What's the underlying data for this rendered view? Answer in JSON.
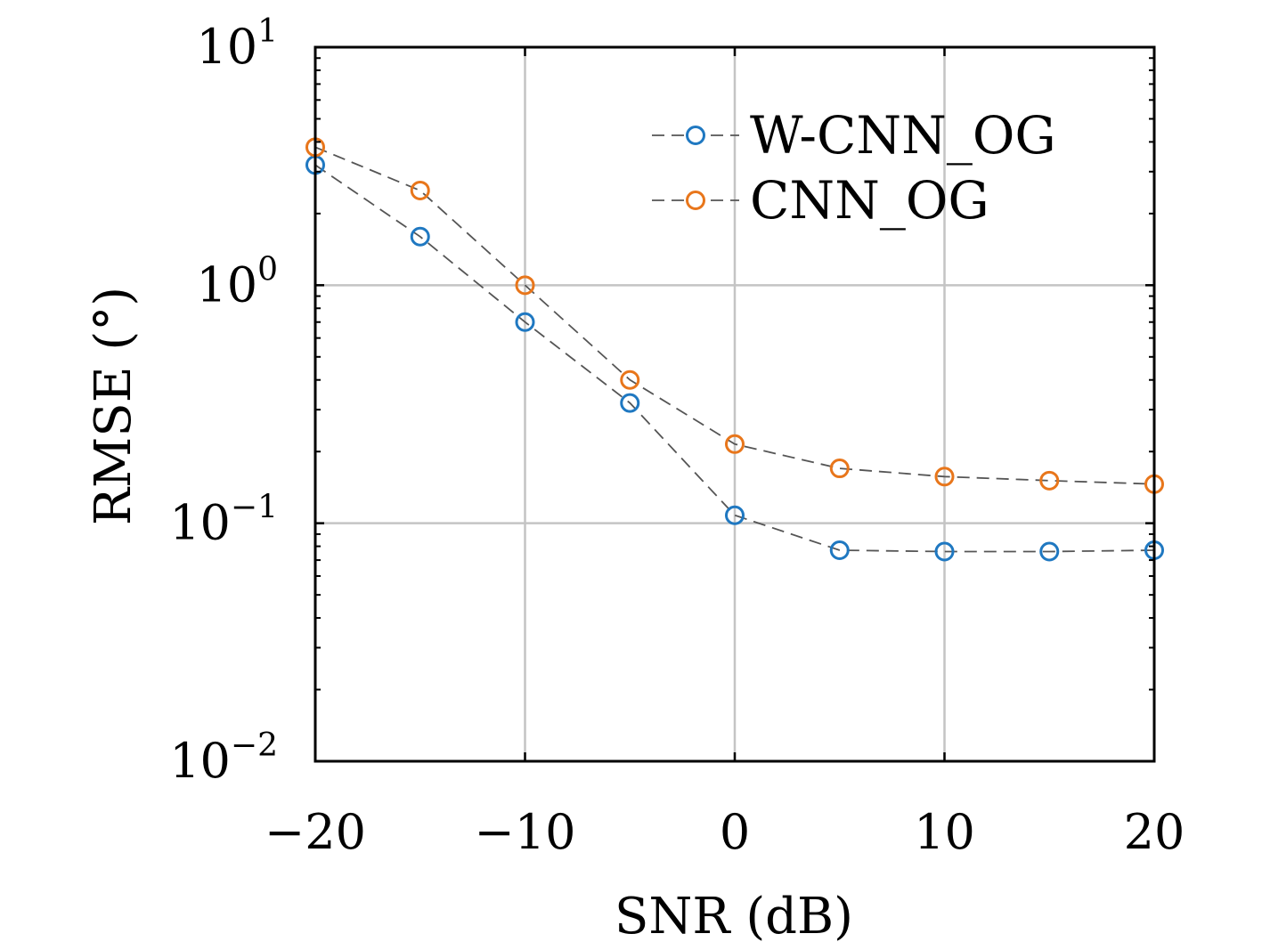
{
  "chart_data": {
    "type": "line",
    "title": "",
    "xlabel": "SNR (dB)",
    "ylabel": "RMSE (°)",
    "xlim": [
      -20,
      20
    ],
    "ylim": [
      0.01,
      10
    ],
    "yscale": "log",
    "grid": true,
    "legend_position": "top-right",
    "x": [
      -20,
      -15,
      -10,
      -5,
      0,
      5,
      10,
      15,
      20
    ],
    "x_ticks": [
      -20,
      -10,
      0,
      10,
      20
    ],
    "x_tick_labels": [
      "−20",
      "−10",
      "0",
      "10",
      "20"
    ],
    "y_ticks": [
      0.01,
      0.1,
      1,
      10
    ],
    "y_tick_labels": [
      {
        "base": "10",
        "exp": "−2"
      },
      {
        "base": "10",
        "exp": "−1"
      },
      {
        "base": "10",
        "exp": "0"
      },
      {
        "base": "10",
        "exp": "1"
      }
    ],
    "series": [
      {
        "name": "W-CNN_OG",
        "color": "#1f78c1",
        "values": [
          3.2,
          1.6,
          0.7,
          0.32,
          0.108,
          0.077,
          0.076,
          0.076,
          0.077
        ]
      },
      {
        "name": "CNN_OG",
        "color": "#e8761b",
        "values": [
          3.8,
          2.5,
          1.0,
          0.4,
          0.215,
          0.17,
          0.157,
          0.151,
          0.146
        ]
      }
    ]
  }
}
